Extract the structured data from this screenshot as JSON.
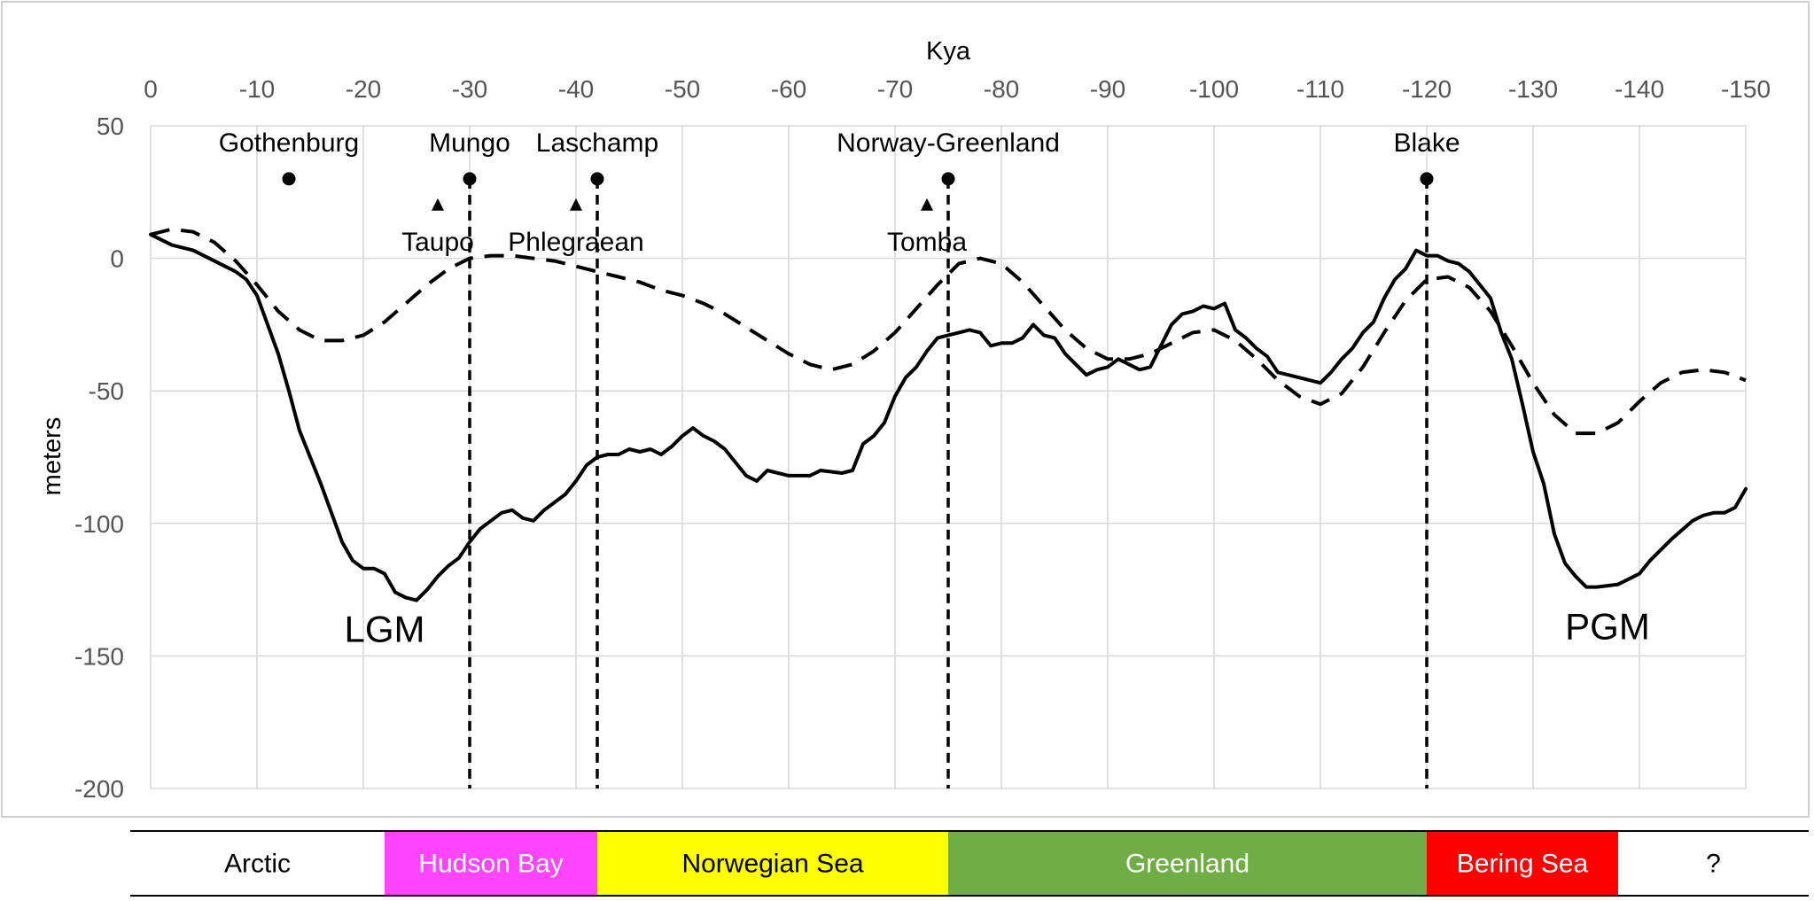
{
  "chart_data": {
    "type": "line",
    "title": "",
    "xlabel": "Kya",
    "ylabel": "meters",
    "xlim": [
      0,
      -150
    ],
    "ylim": [
      -200,
      50
    ],
    "x_ticks": [
      "0",
      "-10",
      "-20",
      "-30",
      "-40",
      "-50",
      "-60",
      "-70",
      "-80",
      "-90",
      "-100",
      "-110",
      "-120",
      "-130",
      "-140",
      "-150"
    ],
    "y_ticks": [
      "50",
      "0",
      "-50",
      "-100",
      "-150",
      "-200"
    ],
    "grid": true,
    "series": [
      {
        "style": "solid",
        "color": "#000000",
        "points": [
          [
            0,
            9
          ],
          [
            -2,
            5
          ],
          [
            -4,
            3
          ],
          [
            -6,
            -1
          ],
          [
            -8,
            -5
          ],
          [
            -9,
            -8
          ],
          [
            -10,
            -14
          ],
          [
            -11,
            -25
          ],
          [
            -12,
            -36
          ],
          [
            -13,
            -50
          ],
          [
            -14,
            -65
          ],
          [
            -15,
            -75
          ],
          [
            -16,
            -85
          ],
          [
            -17,
            -96
          ],
          [
            -18,
            -107
          ],
          [
            -19,
            -114
          ],
          [
            -20,
            -117
          ],
          [
            -21,
            -117
          ],
          [
            -22,
            -119
          ],
          [
            -23,
            -126
          ],
          [
            -24,
            -128
          ],
          [
            -25,
            -129
          ],
          [
            -26,
            -125
          ],
          [
            -27,
            -120
          ],
          [
            -28,
            -116
          ],
          [
            -29,
            -113
          ],
          [
            -30,
            -107
          ],
          [
            -31,
            -102
          ],
          [
            -32,
            -99
          ],
          [
            -33,
            -96
          ],
          [
            -34,
            -95
          ],
          [
            -35,
            -98
          ],
          [
            -36,
            -99
          ],
          [
            -37,
            -95
          ],
          [
            -38,
            -92
          ],
          [
            -39,
            -89
          ],
          [
            -40,
            -84
          ],
          [
            -41,
            -78
          ],
          [
            -42,
            -75
          ],
          [
            -43,
            -74
          ],
          [
            -44,
            -74
          ],
          [
            -45,
            -72
          ],
          [
            -46,
            -73
          ],
          [
            -47,
            -72
          ],
          [
            -48,
            -74
          ],
          [
            -49,
            -71
          ],
          [
            -50,
            -67
          ],
          [
            -51,
            -64
          ],
          [
            -52,
            -67
          ],
          [
            -53,
            -69
          ],
          [
            -54,
            -72
          ],
          [
            -55,
            -77
          ],
          [
            -56,
            -82
          ],
          [
            -57,
            -84
          ],
          [
            -58,
            -80
          ],
          [
            -60,
            -82
          ],
          [
            -62,
            -82
          ],
          [
            -63,
            -80
          ],
          [
            -65,
            -81
          ],
          [
            -66,
            -80
          ],
          [
            -67,
            -70
          ],
          [
            -68,
            -67
          ],
          [
            -69,
            -62
          ],
          [
            -70,
            -52
          ],
          [
            -71,
            -45
          ],
          [
            -72,
            -41
          ],
          [
            -73,
            -35
          ],
          [
            -74,
            -30
          ],
          [
            -76,
            -28
          ],
          [
            -77,
            -27
          ],
          [
            -78,
            -28
          ],
          [
            -79,
            -33
          ],
          [
            -80,
            -32
          ],
          [
            -81,
            -32
          ],
          [
            -82,
            -30
          ],
          [
            -83,
            -25
          ],
          [
            -84,
            -29
          ],
          [
            -85,
            -30
          ],
          [
            -86,
            -36
          ],
          [
            -87,
            -40
          ],
          [
            -88,
            -44
          ],
          [
            -89,
            -42
          ],
          [
            -90,
            -41
          ],
          [
            -91,
            -38
          ],
          [
            -92,
            -40
          ],
          [
            -93,
            -42
          ],
          [
            -94,
            -41
          ],
          [
            -95,
            -33
          ],
          [
            -96,
            -25
          ],
          [
            -97,
            -21
          ],
          [
            -98,
            -20
          ],
          [
            -99,
            -18
          ],
          [
            -100,
            -19
          ],
          [
            -101,
            -17
          ],
          [
            -102,
            -27
          ],
          [
            -103,
            -30
          ],
          [
            -104,
            -34
          ],
          [
            -105,
            -37
          ],
          [
            -106,
            -43
          ],
          [
            -107,
            -44
          ],
          [
            -108,
            -45
          ],
          [
            -109,
            -46
          ],
          [
            -110,
            -47
          ],
          [
            -111,
            -43
          ],
          [
            -112,
            -38
          ],
          [
            -113,
            -34
          ],
          [
            -114,
            -28
          ],
          [
            -115,
            -24
          ],
          [
            -116,
            -15
          ],
          [
            -117,
            -8
          ],
          [
            -118,
            -4
          ],
          [
            -119,
            3
          ],
          [
            -120,
            1
          ],
          [
            -121,
            1
          ],
          [
            -122,
            -1
          ],
          [
            -123,
            -2
          ],
          [
            -124,
            -5
          ],
          [
            -125,
            -10
          ],
          [
            -126,
            -15
          ],
          [
            -127,
            -28
          ],
          [
            -128,
            -38
          ],
          [
            -129,
            -55
          ],
          [
            -130,
            -73
          ],
          [
            -131,
            -85
          ],
          [
            -132,
            -104
          ],
          [
            -133,
            -115
          ],
          [
            -134,
            -120
          ],
          [
            -135,
            -124
          ],
          [
            -136,
            -124
          ],
          [
            -138,
            -123
          ],
          [
            -140,
            -119
          ],
          [
            -141,
            -114
          ],
          [
            -143,
            -106
          ],
          [
            -145,
            -99
          ],
          [
            -146,
            -97
          ],
          [
            -147,
            -96
          ],
          [
            -148,
            -96
          ],
          [
            -149,
            -94
          ],
          [
            -150,
            -87
          ]
        ]
      },
      {
        "style": "dashed",
        "color": "#000000",
        "points": [
          [
            0,
            9
          ],
          [
            -2,
            11
          ],
          [
            -4,
            10
          ],
          [
            -6,
            6
          ],
          [
            -8,
            -1
          ],
          [
            -10,
            -10
          ],
          [
            -12,
            -20
          ],
          [
            -14,
            -27
          ],
          [
            -16,
            -31
          ],
          [
            -18,
            -31
          ],
          [
            -20,
            -29
          ],
          [
            -22,
            -24
          ],
          [
            -24,
            -17
          ],
          [
            -26,
            -10
          ],
          [
            -28,
            -4
          ],
          [
            -30,
            0
          ],
          [
            -32,
            1
          ],
          [
            -34,
            1
          ],
          [
            -36,
            0
          ],
          [
            -38,
            -1
          ],
          [
            -40,
            -3
          ],
          [
            -42,
            -5
          ],
          [
            -44,
            -7
          ],
          [
            -46,
            -9
          ],
          [
            -48,
            -12
          ],
          [
            -50,
            -14
          ],
          [
            -52,
            -17
          ],
          [
            -54,
            -21
          ],
          [
            -56,
            -26
          ],
          [
            -58,
            -31
          ],
          [
            -60,
            -36
          ],
          [
            -62,
            -40
          ],
          [
            -64,
            -42
          ],
          [
            -66,
            -40
          ],
          [
            -68,
            -35
          ],
          [
            -70,
            -28
          ],
          [
            -72,
            -19
          ],
          [
            -74,
            -10
          ],
          [
            -75,
            -6
          ],
          [
            -76,
            -2
          ],
          [
            -78,
            0
          ],
          [
            -80,
            -2
          ],
          [
            -82,
            -9
          ],
          [
            -84,
            -18
          ],
          [
            -86,
            -27
          ],
          [
            -88,
            -34
          ],
          [
            -90,
            -38
          ],
          [
            -92,
            -38
          ],
          [
            -94,
            -36
          ],
          [
            -96,
            -32
          ],
          [
            -98,
            -28
          ],
          [
            -100,
            -27
          ],
          [
            -102,
            -31
          ],
          [
            -104,
            -38
          ],
          [
            -106,
            -46
          ],
          [
            -108,
            -52
          ],
          [
            -110,
            -55
          ],
          [
            -112,
            -51
          ],
          [
            -114,
            -41
          ],
          [
            -116,
            -28
          ],
          [
            -118,
            -16
          ],
          [
            -120,
            -8
          ],
          [
            -122,
            -7
          ],
          [
            -124,
            -11
          ],
          [
            -126,
            -20
          ],
          [
            -128,
            -33
          ],
          [
            -130,
            -47
          ],
          [
            -132,
            -59
          ],
          [
            -134,
            -66
          ],
          [
            -136,
            -66
          ],
          [
            -138,
            -62
          ],
          [
            -140,
            -54
          ],
          [
            -142,
            -47
          ],
          [
            -144,
            -43
          ],
          [
            -146,
            -42
          ],
          [
            -148,
            -43
          ],
          [
            -150,
            -46
          ]
        ]
      }
    ],
    "events": [
      {
        "label": "Gothenburg",
        "x": -13,
        "marker": "dot",
        "dashed_line": false
      },
      {
        "label": "Mungo",
        "x": -30,
        "marker": "dot",
        "dashed_line": true
      },
      {
        "label": "Laschamp",
        "x": -42,
        "marker": "dot",
        "dashed_line": true
      },
      {
        "label": "Norway-Greenland",
        "x": -75,
        "marker": "dot",
        "dashed_line": true
      },
      {
        "label": "Blake",
        "x": -120,
        "marker": "dot",
        "dashed_line": true
      }
    ],
    "eruptions": [
      {
        "label": "Taupo",
        "x": -27
      },
      {
        "label": "Phlegraean",
        "x": -40
      },
      {
        "label": "Tomba",
        "x": -73
      }
    ],
    "annotations": [
      {
        "text": "LGM",
        "x": -22,
        "y": -140
      },
      {
        "text": "PGM",
        "x": -137,
        "y": -139
      }
    ],
    "bands": [
      {
        "label": "Arctic",
        "start": 0,
        "end": -22,
        "color": "#ffffff",
        "text_color": "#000000"
      },
      {
        "label": "Hudson Bay",
        "start": -22,
        "end": -42,
        "color": "#ff44ff",
        "text_color": "#ffffff"
      },
      {
        "label": "Norwegian Sea",
        "start": -42,
        "end": -75,
        "color": "#ffff00",
        "text_color": "#000000"
      },
      {
        "label": "Greenland",
        "start": -75,
        "end": -120,
        "color": "#70ad47",
        "text_color": "#ffffff"
      },
      {
        "label": "Bering Sea",
        "start": -120,
        "end": -138,
        "color": "#ff0000",
        "text_color": "#ffffff"
      },
      {
        "label": "?",
        "start": -138,
        "end": -150,
        "color": "#ffffff",
        "text_color": "#000000"
      }
    ]
  }
}
